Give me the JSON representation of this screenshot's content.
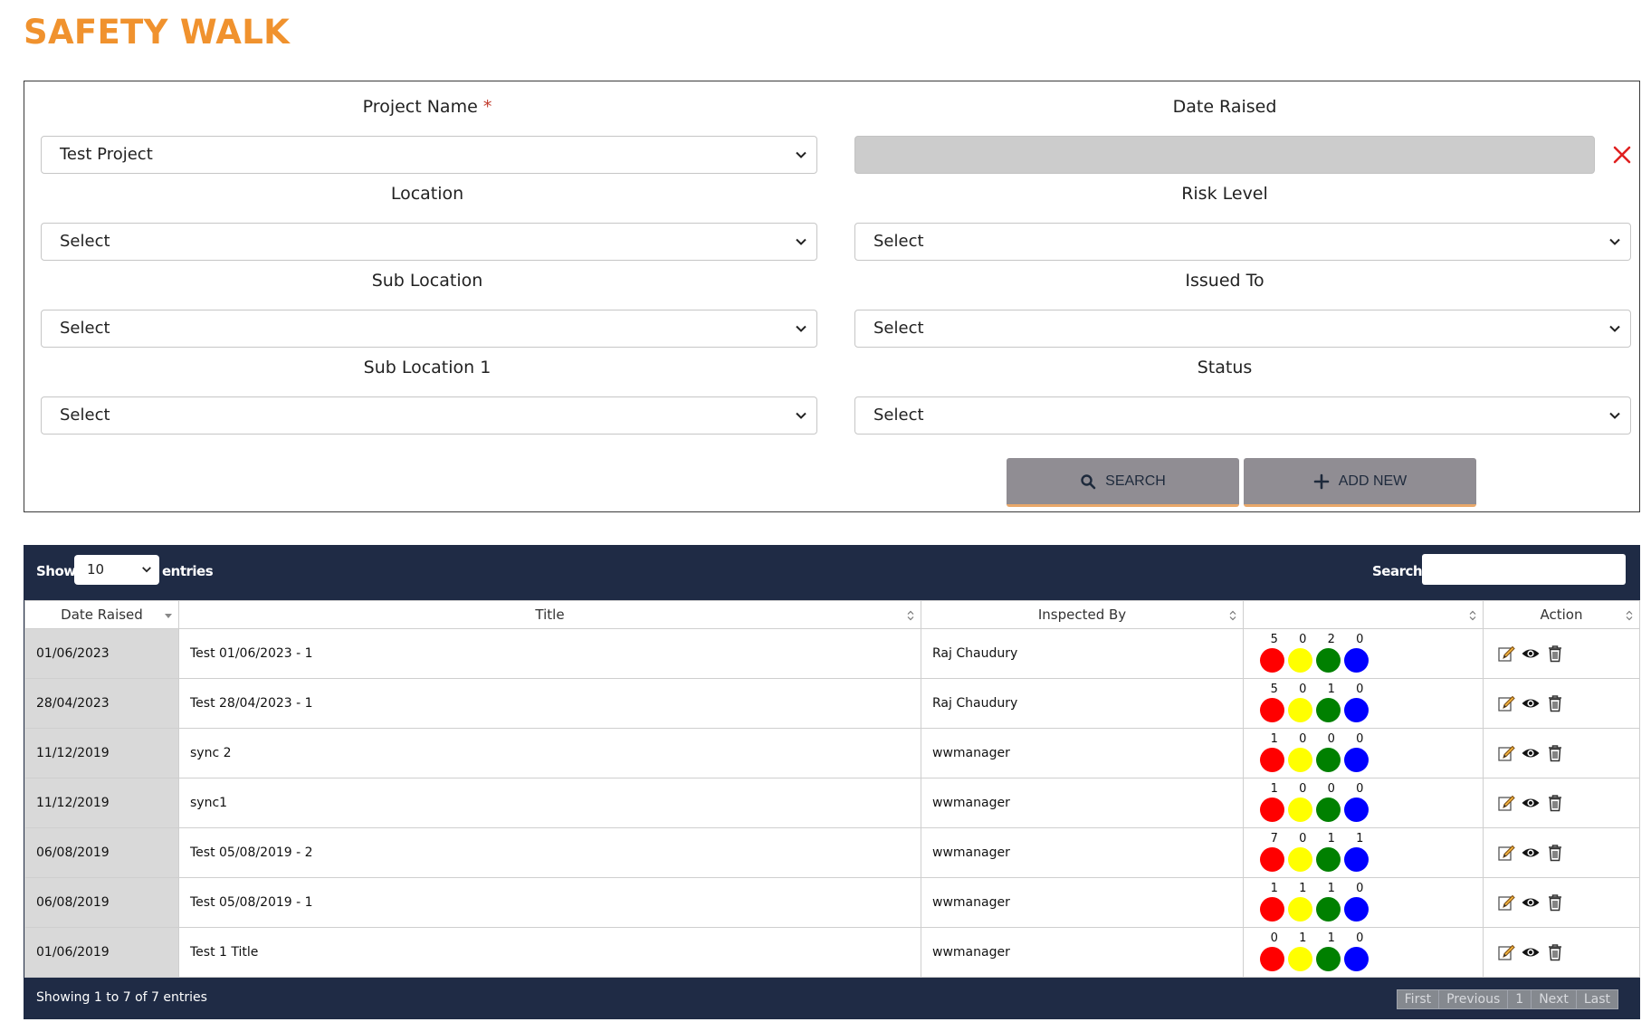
{
  "page": {
    "title": "SAFETY WALK"
  },
  "filters": {
    "project_name": {
      "label": "Project Name",
      "required_mark": "*",
      "value": "Test Project"
    },
    "date_raised": {
      "label": "Date Raised"
    },
    "location": {
      "label": "Location",
      "value": "Select"
    },
    "risk_level": {
      "label": "Risk Level",
      "value": "Select"
    },
    "sub_location": {
      "label": "Sub Location",
      "value": "Select"
    },
    "issued_to": {
      "label": "Issued To",
      "value": "Select"
    },
    "sub_location_1": {
      "label": "Sub Location 1",
      "value": "Select"
    },
    "status": {
      "label": "Status",
      "value": "Select"
    },
    "search_button": "SEARCH",
    "add_new_button": "ADD NEW"
  },
  "table": {
    "show_label": "Show",
    "entries_value": "10",
    "entries_label": "entries",
    "search_label": "Search:",
    "columns": [
      "Date Raised",
      "Title",
      "Inspected By",
      "",
      "Action"
    ],
    "risk_colors": [
      "#ff0000",
      "#ffff00",
      "#008000",
      "#0000ff"
    ],
    "rows": [
      {
        "date": "01/06/2023",
        "title": "Test 01/06/2023 - 1",
        "inspected_by": "Raj Chaudury",
        "risk": [
          "5",
          "0",
          "2",
          "0"
        ]
      },
      {
        "date": "28/04/2023",
        "title": "Test 28/04/2023 - 1",
        "inspected_by": "Raj Chaudury",
        "risk": [
          "5",
          "0",
          "1",
          "0"
        ]
      },
      {
        "date": "11/12/2019",
        "title": "sync 2",
        "inspected_by": "wwmanager",
        "risk": [
          "1",
          "0",
          "0",
          "0"
        ]
      },
      {
        "date": "11/12/2019",
        "title": "sync1",
        "inspected_by": "wwmanager",
        "risk": [
          "1",
          "0",
          "0",
          "0"
        ]
      },
      {
        "date": "06/08/2019",
        "title": "Test 05/08/2019 - 2",
        "inspected_by": "wwmanager",
        "risk": [
          "7",
          "0",
          "1",
          "1"
        ]
      },
      {
        "date": "06/08/2019",
        "title": "Test 05/08/2019 - 1",
        "inspected_by": "wwmanager",
        "risk": [
          "1",
          "1",
          "1",
          "0"
        ]
      },
      {
        "date": "01/06/2019",
        "title": "Test 1 Title",
        "inspected_by": "wwmanager",
        "risk": [
          "0",
          "1",
          "1",
          "0"
        ]
      }
    ],
    "footer": {
      "showing_text": "Showing 1 to 7 of 7 entries",
      "pager": [
        "First",
        "Previous",
        "1",
        "Next",
        "Last"
      ]
    }
  },
  "icons": {
    "row_actions": [
      "edit-icon",
      "view-icon",
      "delete-icon"
    ],
    "search_button": "search-icon",
    "add_button": "plus-icon",
    "clear_date": "close-icon"
  }
}
